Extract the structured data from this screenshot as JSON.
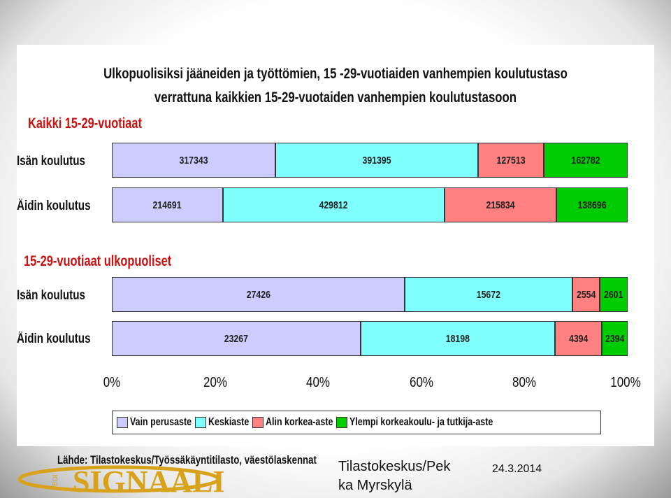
{
  "chart_data": {
    "type": "bar",
    "orientation": "horizontal",
    "stacked": "percent",
    "title_lines": [
      "Ulkopuolisiksi jääneiden ja työttömien, 15 -29-vuotiaiden vanhempien koulutustaso",
      "verrattuna kaikkien 15-29-vuotaiden vanhempien koulutustasoon"
    ],
    "legend_position": "bottom",
    "series": [
      {
        "name": "Vain perusaste",
        "color": "#ccccff"
      },
      {
        "name": "Keskiaste",
        "color": "#80ffff"
      },
      {
        "name": "Alin korkea-aste",
        "color": "#ff8080"
      },
      {
        "name": "Ylempi korkeakoulu- ja tutkija-aste",
        "color": "#00cc00"
      }
    ],
    "groups": [
      {
        "heading": "Kaikki 15-29-vuotiaat",
        "rows": [
          {
            "label": "Isän koulutus",
            "values": [
              317343,
              391395,
              127513,
              162782
            ]
          },
          {
            "label": "Äidin koulutus",
            "values": [
              214691,
              429812,
              215834,
              138696
            ]
          }
        ]
      },
      {
        "heading": "15-29-vuotiaat ulkopuoliset",
        "rows": [
          {
            "label": "Isän koulutus",
            "values": [
              27426,
              15672,
              2554,
              2601
            ]
          },
          {
            "label": "Äidin koulutus",
            "values": [
              23267,
              18198,
              4394,
              2394
            ]
          }
        ]
      }
    ],
    "x_ticks": [
      "0%",
      "20%",
      "40%",
      "60%",
      "80%",
      "100%"
    ],
    "xlim": [
      0,
      100
    ]
  },
  "source": "Lähde: Tilastokeskus/Työssäkäyntitilasto, väestölaskennat",
  "logo": {
    "text": "SIGNAALI",
    "small_text": "TEDI"
  },
  "footer": {
    "author_line1": "Tilastokeskus/Pek",
    "author_line2": "ka Myrskylä",
    "date": "24.3.2014"
  }
}
